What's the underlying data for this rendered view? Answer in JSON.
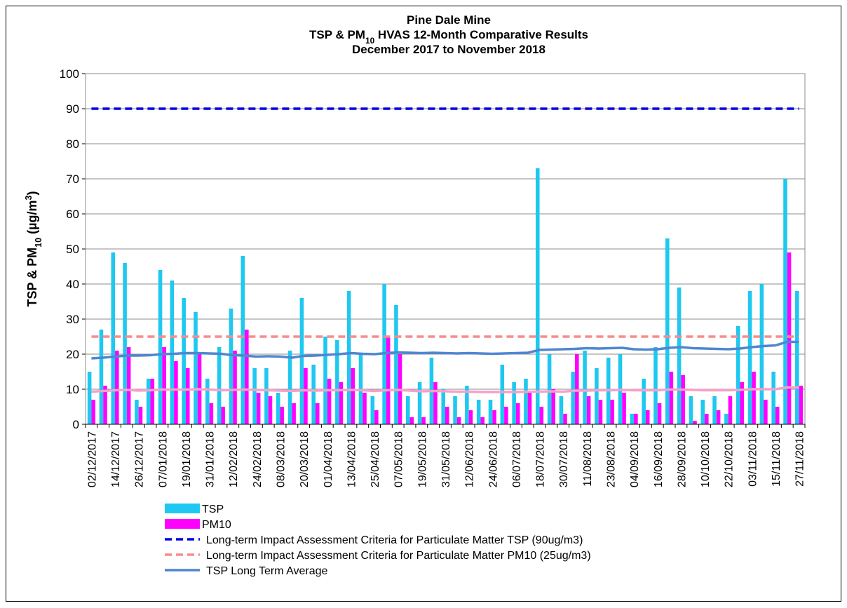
{
  "chart_data": {
    "type": "bar",
    "title": [
      "Pine Dale Mine",
      [
        "TSP & PM",
        "10",
        " HVAS 12-Month Comparative Results"
      ],
      "December 2017 to November 2018"
    ],
    "y_label": [
      "TSP & PM",
      "10",
      " (µg/m",
      "3",
      ")"
    ],
    "ylim": [
      0,
      100
    ],
    "yticks": [
      0,
      10,
      20,
      30,
      40,
      50,
      60,
      70,
      80,
      90,
      100
    ],
    "grid": true,
    "categories": [
      "02/12/2017",
      null,
      "14/12/2017",
      null,
      "26/12/2017",
      null,
      "07/01/2018",
      null,
      "19/01/2018",
      null,
      "31/01/2018",
      null,
      "12/02/2018",
      null,
      "24/02/2018",
      null,
      "08/03/2018",
      null,
      "20/03/2018",
      null,
      "01/04/2018",
      null,
      "13/04/2018",
      null,
      "25/04/2018",
      null,
      "07/05/2018",
      null,
      "19/05/2018",
      null,
      "31/05/2018",
      null,
      "12/06/2018",
      null,
      "24/06/2018",
      null,
      "06/07/2018",
      null,
      "18/07/2018",
      null,
      "30/07/2018",
      null,
      "11/08/2018",
      null,
      "23/08/2018",
      null,
      "04/09/2018",
      null,
      "16/09/2018",
      null,
      "28/09/2018",
      null,
      "10/10/2018",
      null,
      "22/10/2018",
      null,
      "03/11/2018",
      null,
      "15/11/2018",
      null,
      "27/11/2018"
    ],
    "series": [
      {
        "name": "TSP",
        "kind": "bar",
        "color": "#1ec8f0",
        "values": [
          15,
          27,
          49,
          46,
          7,
          13,
          44,
          41,
          36,
          32,
          13,
          22,
          33,
          48,
          16,
          16,
          9,
          21,
          36,
          17,
          25,
          24,
          38,
          20,
          8,
          40,
          34,
          8,
          12,
          19,
          10,
          8,
          11,
          7,
          7,
          17,
          12,
          13,
          73,
          20,
          8,
          15,
          21,
          16,
          19,
          20,
          3,
          13,
          22,
          53,
          39,
          8,
          7,
          8,
          3,
          28,
          38,
          40,
          15,
          70,
          38
        ]
      },
      {
        "name": "PM10",
        "kind": "bar",
        "color": "#ff00ff",
        "values": [
          7,
          11,
          21,
          22,
          5,
          13,
          22,
          18,
          16,
          20,
          6,
          5,
          21,
          27,
          9,
          8,
          5,
          6,
          16,
          6,
          13,
          12,
          16,
          9,
          4,
          25,
          20,
          2,
          2,
          12,
          5,
          2,
          4,
          2,
          4,
          5,
          6,
          9,
          5,
          10,
          3,
          20,
          8,
          7,
          7,
          9,
          3,
          4,
          6,
          15,
          14,
          1,
          3,
          4,
          8,
          12,
          15,
          7,
          5,
          49,
          11
        ]
      },
      {
        "name": "Long-term Impact Assessment Criteria for Particulate Matter TSP (90ug/m3)",
        "kind": "hline",
        "color": "#0000e6",
        "value": 90
      },
      {
        "name": "Long-term Impact Assessment Criteria for Particulate Matter PM10 (25ug/m3)",
        "kind": "hline",
        "color": "#f78c8c",
        "value": 25
      },
      {
        "name": "TSP Long Term Average",
        "kind": "line",
        "color": "#4f86d0",
        "values": [
          18.8,
          19,
          19.3,
          19.6,
          19.6,
          19.7,
          20,
          20.1,
          20.3,
          20.3,
          20.2,
          20.1,
          19.7,
          19.6,
          19.3,
          19.4,
          19.3,
          19,
          19.5,
          19.6,
          19.8,
          20,
          20.3,
          20.1,
          20,
          20.3,
          20.5,
          20.4,
          20.3,
          20.4,
          20.3,
          20.2,
          20.3,
          20.2,
          20.1,
          20.2,
          20.3,
          20.4,
          21.2,
          21.3,
          21.4,
          21.5,
          21.7,
          21.6,
          21.7,
          21.8,
          21.4,
          21.3,
          21.4,
          21.8,
          22,
          21.7,
          21.6,
          21.5,
          21.4,
          21.6,
          22,
          22.3,
          22.5,
          23.5,
          23.5
        ]
      },
      {
        "kind": "line",
        "color": "#f6a0c8",
        "values": [
          9.3,
          9.5,
          9.7,
          9.8,
          9.6,
          9.7,
          9.9,
          9.9,
          9.9,
          10,
          9.9,
          9.7,
          9.8,
          9.9,
          9.8,
          9.7,
          9.6,
          9.5,
          9.7,
          9.6,
          9.7,
          9.7,
          9.8,
          9.7,
          9.5,
          9.7,
          9.8,
          9.6,
          9.4,
          9.5,
          9.4,
          9.3,
          9.3,
          9.2,
          9.2,
          9.2,
          9.2,
          9.3,
          9.3,
          9.4,
          9.3,
          9.6,
          9.6,
          9.7,
          9.7,
          9.8,
          9.7,
          9.7,
          9.7,
          9.9,
          9.9,
          9.8,
          9.7,
          9.7,
          9.7,
          9.8,
          10,
          10,
          10,
          10.5,
          10.5
        ]
      }
    ]
  }
}
